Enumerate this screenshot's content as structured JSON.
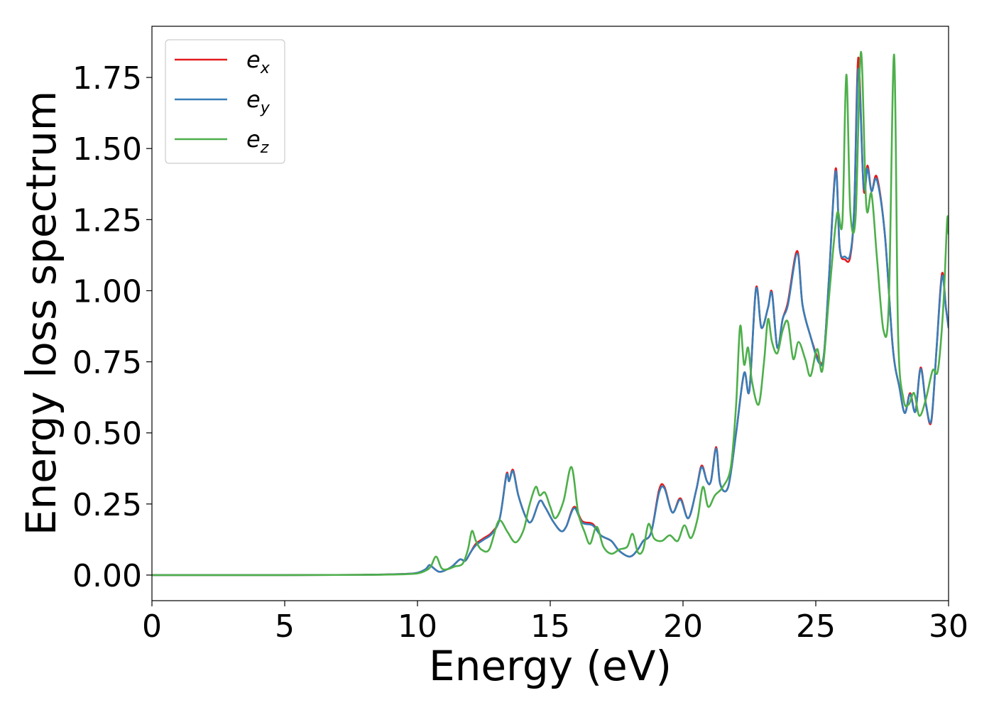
{
  "chart_data": {
    "type": "line",
    "title": "",
    "xlabel": "Energy (eV)",
    "ylabel": "Energy loss spectrum",
    "xlim": [
      0,
      30
    ],
    "ylim": [
      -0.09,
      1.93
    ],
    "xticks": [
      0,
      5,
      10,
      15,
      20,
      25,
      30
    ],
    "xtick_labels": [
      "0",
      "5",
      "10",
      "15",
      "20",
      "25",
      "30"
    ],
    "yticks": [
      0.0,
      0.25,
      0.5,
      0.75,
      1.0,
      1.25,
      1.5,
      1.75
    ],
    "ytick_labels": [
      "0.00",
      "0.25",
      "0.50",
      "0.75",
      "1.00",
      "1.25",
      "1.50",
      "1.75"
    ],
    "grid": false,
    "legend_position": "top-left",
    "series": [
      {
        "name": "e_x",
        "legend_base": "e",
        "legend_sub": "x",
        "color": "#e41a1c",
        "points": [
          [
            0,
            0
          ],
          [
            5,
            0
          ],
          [
            8,
            0.001
          ],
          [
            9.5,
            0.004
          ],
          [
            10,
            0.008
          ],
          [
            10.3,
            0.02
          ],
          [
            10.45,
            0.035
          ],
          [
            10.6,
            0.025
          ],
          [
            10.8,
            0.012
          ],
          [
            11,
            0.015
          ],
          [
            11.3,
            0.03
          ],
          [
            11.6,
            0.055
          ],
          [
            11.8,
            0.05
          ],
          [
            12,
            0.08
          ],
          [
            12.2,
            0.11
          ],
          [
            12.5,
            0.13
          ],
          [
            12.8,
            0.15
          ],
          [
            13.1,
            0.2
          ],
          [
            13.35,
            0.355
          ],
          [
            13.45,
            0.33
          ],
          [
            13.6,
            0.37
          ],
          [
            13.8,
            0.28
          ],
          [
            14.1,
            0.2
          ],
          [
            14.3,
            0.19
          ],
          [
            14.6,
            0.26
          ],
          [
            14.8,
            0.24
          ],
          [
            15.1,
            0.19
          ],
          [
            15.4,
            0.155
          ],
          [
            15.6,
            0.17
          ],
          [
            15.9,
            0.24
          ],
          [
            16.2,
            0.19
          ],
          [
            16.6,
            0.18
          ],
          [
            16.9,
            0.14
          ],
          [
            17.3,
            0.12
          ],
          [
            17.6,
            0.085
          ],
          [
            18,
            0.065
          ],
          [
            18.3,
            0.09
          ],
          [
            18.5,
            0.12
          ],
          [
            18.8,
            0.15
          ],
          [
            19.1,
            0.3
          ],
          [
            19.3,
            0.31
          ],
          [
            19.6,
            0.22
          ],
          [
            19.9,
            0.27
          ],
          [
            20.2,
            0.2
          ],
          [
            20.5,
            0.3
          ],
          [
            20.7,
            0.385
          ],
          [
            20.9,
            0.33
          ],
          [
            21.05,
            0.33
          ],
          [
            21.25,
            0.45
          ],
          [
            21.4,
            0.32
          ],
          [
            21.7,
            0.31
          ],
          [
            22,
            0.5
          ],
          [
            22.3,
            0.71
          ],
          [
            22.5,
            0.65
          ],
          [
            22.75,
            1.01
          ],
          [
            22.95,
            0.87
          ],
          [
            23.2,
            0.94
          ],
          [
            23.35,
            0.995
          ],
          [
            23.55,
            0.8
          ],
          [
            23.75,
            0.9
          ],
          [
            23.95,
            0.96
          ],
          [
            24.3,
            1.14
          ],
          [
            24.5,
            0.95
          ],
          [
            24.8,
            0.84
          ],
          [
            25.1,
            0.76
          ],
          [
            25.3,
            0.77
          ],
          [
            25.5,
            1.05
          ],
          [
            25.75,
            1.43
          ],
          [
            25.9,
            1.15
          ],
          [
            26.1,
            1.11
          ],
          [
            26.3,
            1.12
          ],
          [
            26.45,
            1.3
          ],
          [
            26.6,
            1.82
          ],
          [
            26.8,
            1.36
          ],
          [
            26.95,
            1.44
          ],
          [
            27.1,
            1.35
          ],
          [
            27.3,
            1.4
          ],
          [
            27.6,
            1.2
          ],
          [
            27.9,
            0.8
          ],
          [
            28.15,
            0.66
          ],
          [
            28.35,
            0.57
          ],
          [
            28.55,
            0.64
          ],
          [
            28.75,
            0.575
          ],
          [
            28.95,
            0.73
          ],
          [
            29.15,
            0.6
          ],
          [
            29.35,
            0.54
          ],
          [
            29.55,
            0.8
          ],
          [
            29.75,
            1.06
          ],
          [
            29.9,
            0.94
          ],
          [
            30,
            0.87
          ]
        ]
      },
      {
        "name": "e_y",
        "legend_base": "e",
        "legend_sub": "y",
        "color": "#377eb8",
        "points": [
          [
            0,
            0
          ],
          [
            5,
            0
          ],
          [
            8,
            0.001
          ],
          [
            9.5,
            0.004
          ],
          [
            10,
            0.008
          ],
          [
            10.3,
            0.02
          ],
          [
            10.45,
            0.035
          ],
          [
            10.6,
            0.025
          ],
          [
            10.8,
            0.012
          ],
          [
            11,
            0.015
          ],
          [
            11.3,
            0.03
          ],
          [
            11.6,
            0.055
          ],
          [
            11.8,
            0.05
          ],
          [
            12,
            0.08
          ],
          [
            12.2,
            0.105
          ],
          [
            12.5,
            0.125
          ],
          [
            12.8,
            0.145
          ],
          [
            13.1,
            0.2
          ],
          [
            13.35,
            0.35
          ],
          [
            13.45,
            0.33
          ],
          [
            13.6,
            0.365
          ],
          [
            13.8,
            0.28
          ],
          [
            14.1,
            0.2
          ],
          [
            14.3,
            0.19
          ],
          [
            14.6,
            0.26
          ],
          [
            14.8,
            0.24
          ],
          [
            15.1,
            0.19
          ],
          [
            15.4,
            0.155
          ],
          [
            15.6,
            0.17
          ],
          [
            15.9,
            0.235
          ],
          [
            16.2,
            0.185
          ],
          [
            16.6,
            0.175
          ],
          [
            16.9,
            0.14
          ],
          [
            17.3,
            0.12
          ],
          [
            17.6,
            0.085
          ],
          [
            18,
            0.065
          ],
          [
            18.3,
            0.09
          ],
          [
            18.5,
            0.12
          ],
          [
            18.8,
            0.15
          ],
          [
            19.1,
            0.29
          ],
          [
            19.3,
            0.305
          ],
          [
            19.6,
            0.22
          ],
          [
            19.9,
            0.265
          ],
          [
            20.2,
            0.2
          ],
          [
            20.5,
            0.3
          ],
          [
            20.7,
            0.38
          ],
          [
            20.9,
            0.33
          ],
          [
            21.05,
            0.33
          ],
          [
            21.25,
            0.445
          ],
          [
            21.4,
            0.32
          ],
          [
            21.7,
            0.31
          ],
          [
            22,
            0.5
          ],
          [
            22.3,
            0.71
          ],
          [
            22.5,
            0.65
          ],
          [
            22.75,
            1.005
          ],
          [
            22.95,
            0.87
          ],
          [
            23.2,
            0.94
          ],
          [
            23.35,
            0.99
          ],
          [
            23.55,
            0.8
          ],
          [
            23.75,
            0.9
          ],
          [
            23.95,
            0.95
          ],
          [
            24.3,
            1.13
          ],
          [
            24.5,
            0.95
          ],
          [
            24.8,
            0.84
          ],
          [
            25.1,
            0.75
          ],
          [
            25.3,
            0.77
          ],
          [
            25.5,
            1.05
          ],
          [
            25.75,
            1.42
          ],
          [
            25.9,
            1.15
          ],
          [
            26.1,
            1.12
          ],
          [
            26.3,
            1.13
          ],
          [
            26.45,
            1.3
          ],
          [
            26.6,
            1.78
          ],
          [
            26.8,
            1.37
          ],
          [
            26.95,
            1.43
          ],
          [
            27.1,
            1.35
          ],
          [
            27.3,
            1.39
          ],
          [
            27.6,
            1.2
          ],
          [
            27.9,
            0.8
          ],
          [
            28.15,
            0.66
          ],
          [
            28.35,
            0.57
          ],
          [
            28.55,
            0.635
          ],
          [
            28.75,
            0.575
          ],
          [
            28.95,
            0.725
          ],
          [
            29.15,
            0.6
          ],
          [
            29.35,
            0.545
          ],
          [
            29.55,
            0.8
          ],
          [
            29.75,
            1.05
          ],
          [
            29.9,
            0.94
          ],
          [
            30,
            0.87
          ]
        ]
      },
      {
        "name": "e_z",
        "legend_base": "e",
        "legend_sub": "z",
        "color": "#4daf4a",
        "points": [
          [
            0,
            0
          ],
          [
            5,
            0
          ],
          [
            8,
            0.001
          ],
          [
            9.5,
            0.003
          ],
          [
            10,
            0.006
          ],
          [
            10.3,
            0.015
          ],
          [
            10.5,
            0.03
          ],
          [
            10.7,
            0.065
          ],
          [
            10.9,
            0.025
          ],
          [
            11.1,
            0.02
          ],
          [
            11.4,
            0.03
          ],
          [
            11.7,
            0.04
          ],
          [
            11.9,
            0.09
          ],
          [
            12.05,
            0.155
          ],
          [
            12.2,
            0.12
          ],
          [
            12.4,
            0.09
          ],
          [
            12.7,
            0.09
          ],
          [
            13,
            0.18
          ],
          [
            13.15,
            0.19
          ],
          [
            13.4,
            0.15
          ],
          [
            13.7,
            0.115
          ],
          [
            14,
            0.16
          ],
          [
            14.2,
            0.24
          ],
          [
            14.45,
            0.31
          ],
          [
            14.6,
            0.28
          ],
          [
            14.8,
            0.29
          ],
          [
            15,
            0.24
          ],
          [
            15.2,
            0.2
          ],
          [
            15.5,
            0.26
          ],
          [
            15.8,
            0.38
          ],
          [
            16.05,
            0.22
          ],
          [
            16.3,
            0.15
          ],
          [
            16.5,
            0.11
          ],
          [
            16.75,
            0.17
          ],
          [
            17,
            0.1
          ],
          [
            17.3,
            0.075
          ],
          [
            17.6,
            0.09
          ],
          [
            17.9,
            0.1
          ],
          [
            18.1,
            0.145
          ],
          [
            18.3,
            0.08
          ],
          [
            18.5,
            0.09
          ],
          [
            18.7,
            0.18
          ],
          [
            18.9,
            0.13
          ],
          [
            19.2,
            0.12
          ],
          [
            19.5,
            0.14
          ],
          [
            19.8,
            0.12
          ],
          [
            20.05,
            0.175
          ],
          [
            20.3,
            0.13
          ],
          [
            20.55,
            0.2
          ],
          [
            20.75,
            0.31
          ],
          [
            20.95,
            0.24
          ],
          [
            21.2,
            0.28
          ],
          [
            21.5,
            0.31
          ],
          [
            21.8,
            0.38
          ],
          [
            22,
            0.6
          ],
          [
            22.15,
            0.875
          ],
          [
            22.3,
            0.74
          ],
          [
            22.45,
            0.8
          ],
          [
            22.6,
            0.68
          ],
          [
            22.85,
            0.6
          ],
          [
            23.05,
            0.75
          ],
          [
            23.2,
            0.9
          ],
          [
            23.35,
            0.82
          ],
          [
            23.55,
            0.78
          ],
          [
            23.75,
            0.86
          ],
          [
            23.95,
            0.89
          ],
          [
            24.15,
            0.76
          ],
          [
            24.35,
            0.82
          ],
          [
            24.6,
            0.76
          ],
          [
            24.8,
            0.7
          ],
          [
            25.05,
            0.795
          ],
          [
            25.25,
            0.72
          ],
          [
            25.5,
            0.98
          ],
          [
            25.8,
            1.27
          ],
          [
            26,
            1.24
          ],
          [
            26.15,
            1.76
          ],
          [
            26.3,
            1.28
          ],
          [
            26.5,
            1.26
          ],
          [
            26.7,
            1.84
          ],
          [
            26.9,
            1.3
          ],
          [
            27.1,
            1.34
          ],
          [
            27.3,
            1.12
          ],
          [
            27.55,
            0.86
          ],
          [
            27.75,
            0.96
          ],
          [
            27.95,
            1.83
          ],
          [
            28.1,
            0.85
          ],
          [
            28.3,
            0.62
          ],
          [
            28.5,
            0.6
          ],
          [
            28.7,
            0.64
          ],
          [
            28.9,
            0.56
          ],
          [
            29.15,
            0.62
          ],
          [
            29.4,
            0.72
          ],
          [
            29.6,
            0.72
          ],
          [
            29.8,
            0.94
          ],
          [
            29.95,
            1.25
          ],
          [
            30,
            1.2
          ]
        ]
      }
    ]
  }
}
